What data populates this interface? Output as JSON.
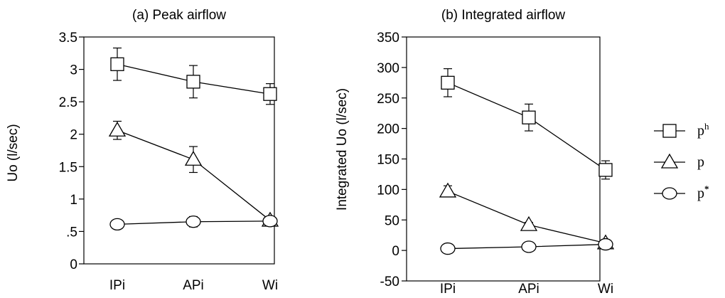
{
  "chart_data": [
    {
      "type": "line",
      "title": "(a) Peak airflow",
      "xlabel": "",
      "ylabel": "Uo (l/sec)",
      "categories": [
        "IPi",
        "APi",
        "Wi"
      ],
      "ylim": [
        0,
        3.5
      ],
      "yticks": [
        0,
        0.5,
        1,
        1.5,
        2,
        2.5,
        3,
        3.5
      ],
      "ytick_labels": [
        "0",
        ".5",
        "1",
        "1.5",
        "2",
        "2.5",
        "3",
        "3.5"
      ],
      "grid": false,
      "series": [
        {
          "name": "ph",
          "marker": "square",
          "values": [
            3.08,
            2.81,
            2.62
          ],
          "error": [
            0.25,
            0.25,
            0.16
          ]
        },
        {
          "name": "p",
          "marker": "triangle",
          "values": [
            2.06,
            1.61,
            0.67
          ],
          "error": [
            0.14,
            0.2,
            0.05
          ]
        },
        {
          "name": "p*",
          "marker": "circle",
          "values": [
            0.61,
            0.65,
            0.66
          ],
          "error": [
            0.03,
            0.08,
            0.04
          ]
        }
      ]
    },
    {
      "type": "line",
      "title": "(b) Integrated airflow",
      "xlabel": "",
      "ylabel": "Integrated Uo (l/sec)",
      "categories": [
        "IPi",
        "APi",
        "Wi"
      ],
      "ylim": [
        -50,
        350
      ],
      "yticks": [
        -50,
        0,
        50,
        100,
        150,
        200,
        250,
        300,
        350
      ],
      "ytick_labels": [
        "-50",
        "0",
        "50",
        "100",
        "150",
        "200",
        "250",
        "300",
        "350"
      ],
      "grid": false,
      "series": [
        {
          "name": "ph",
          "marker": "square",
          "values": [
            275,
            218,
            132
          ],
          "error": [
            23,
            22,
            15
          ]
        },
        {
          "name": "p",
          "marker": "triangle",
          "values": [
            97,
            42,
            12
          ],
          "error": [
            9,
            4,
            4
          ]
        },
        {
          "name": "p*",
          "marker": "circle",
          "values": [
            3,
            6,
            10
          ],
          "error": [
            2,
            3,
            3
          ]
        }
      ]
    }
  ],
  "legend": {
    "placement": "right",
    "items": [
      {
        "marker": "square",
        "base": "p",
        "sup": "h"
      },
      {
        "marker": "triangle",
        "base": "p",
        "sup": ""
      },
      {
        "marker": "circle",
        "base": "p",
        "sup": "*"
      }
    ]
  },
  "colors": {
    "ink": "#000000",
    "marker_fill": "#ffffff",
    "background": "#ffffff"
  }
}
